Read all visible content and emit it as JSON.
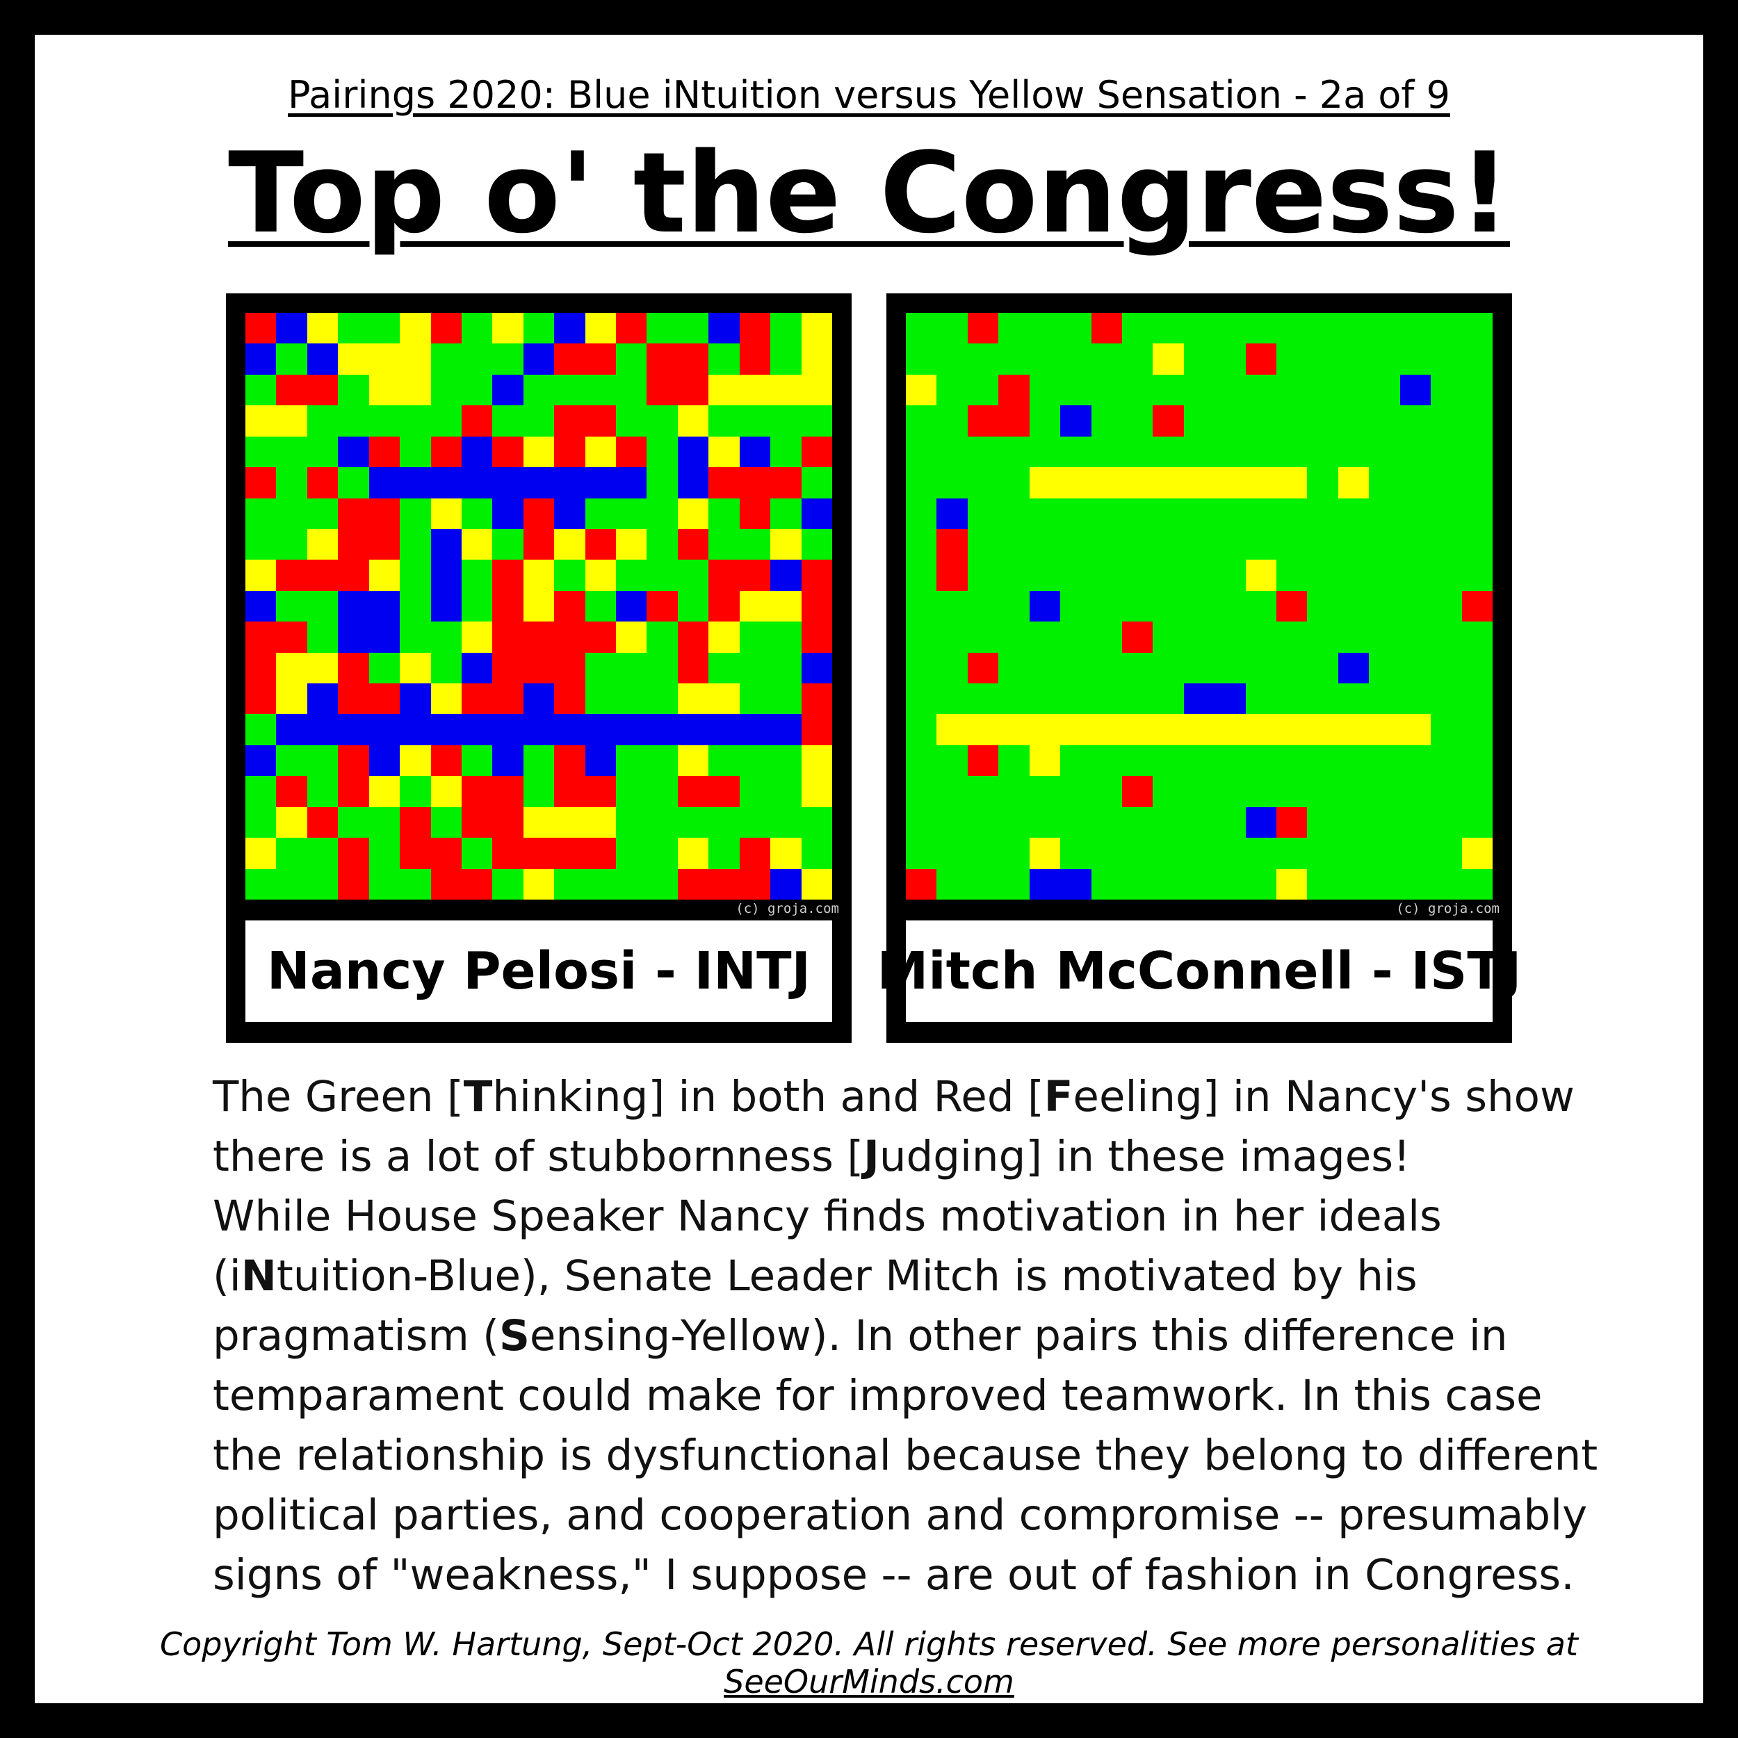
{
  "header": {
    "subtitle": "Pairings 2020: Blue iNtuition versus Yellow Sensation - 2a of 9",
    "title": "Top o' the Congress!"
  },
  "colors": {
    "green": "#00f000",
    "red": "#ff0000",
    "blue": "#0000f0",
    "yellow": "#ffff00"
  },
  "panels": [
    {
      "name": "Nancy Pelosi - INTJ",
      "watermark": "(c) groja.com",
      "rows": [
        "RBYGGYRGYGBYRGGBRGY",
        "BGBYYYGGGBRRGRRGRGY",
        "GRRGYYGGBGGGGRRYYYY",
        "YYGGGGGRGGRRGGYGGGG",
        "GGGBRGRBRYRYRGBYBGR",
        "RGRGBBBBBBBBBGBRRRG",
        "GGGRRGYGBRBGGGYGRGB",
        "GGYRRGBYGRYRYGRGGYG",
        "YRRRYGBGRYGYGGGRRBR",
        "BGGBBGBGRYRGBRGRYYR",
        "RRGBBGGYRRRRYGRYGGR",
        "RYYRGYGBRRRGGGRGGGB",
        "RYBRRBYRRBRGGGYYGGR",
        "GBBBBBBBBBBBBBBBBBR",
        "BGGRBYRGBGRBGGYGGGY",
        "GRGRYGYRRGRRGGRRGGY",
        "GYRGGRGRRYYYGGGGGGG",
        "YGGRGRRGRRRRGGYGRYG",
        "GGGRGGRRGYGGGGRRRBY"
      ]
    },
    {
      "name": "Mitch McConnell - ISTJ",
      "watermark": "(c) groja.com",
      "rows": [
        "GGRGGGRGGGGGGGGGGGG",
        "GGGGGGGGYGGRGGGGGGG",
        "YGGRGGGGGGGGGGGGBGG",
        "GGRRGBGGRGGGGGGGGGG",
        "GGGGGGGGGGGGGGGGGGG",
        "GGGGYYYYYYYYYGYGGGG",
        "GBGGGGGGGGGGGGGGGGG",
        "GRGGGGGGGGGGGGGGGGG",
        "GRGGGGGGGGGYGGGGGGG",
        "GGGGBGGGGGGGRGGGGGR",
        "GGGGGGGRGGGGGGGGGGG",
        "GGRGGGGGGGGGGGBGGGG",
        "GGGGGGGGGBBGGGGGGGG",
        "GYYYYYYYYYYYYYYYYGG",
        "GGRGYGGGGGGGGGGGGGG",
        "GGGGGGGRGGGGGGGGGGG",
        "GGGGGGGGGGGBRGGGGGG",
        "GGGGYGGGGGGGGGGGGGY",
        "RGGGBBGGGGGGYGGGGGG"
      ]
    }
  ],
  "body": {
    "p1": {
      "a": "The Green [",
      "b1": "T",
      "c": "hinking] in both and Red [",
      "b2": "F",
      "d": "eeling] in Nancy's show there is a lot of stubbornness [",
      "b3": "J",
      "e": "udging] in these images!"
    },
    "p2": {
      "a": "While House Speaker Nancy finds motivation in her ideals (i",
      "b1": "N",
      "c": "tuition-Blue), Senate Leader Mitch is motivated by his pragmatism (",
      "b2": "S",
      "d": "ensing-Yellow).  In other pairs this difference in temparament could make for improved teamwork.  In this case the relationship is dysfunctional because they belong to different political parties, and cooperation and compromise -- presumably signs of \"weakness,\" I suppose --  are out of fashion in Congress."
    }
  },
  "footer": {
    "text": "Copyright Tom W. Hartung, Sept-Oct 2020.  All rights reserved.  See more personalities at ",
    "link": "SeeOurMinds.com"
  }
}
